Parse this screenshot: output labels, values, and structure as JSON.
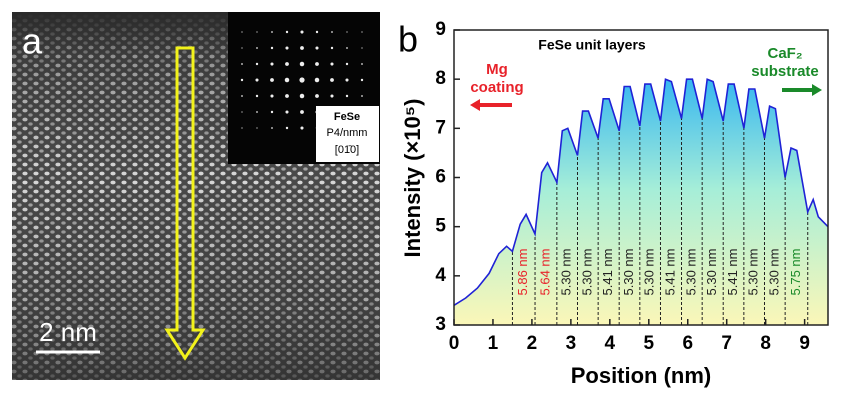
{
  "image_panel": {
    "label": "a",
    "scale_bar": "2 nm",
    "inset": [
      "FeSe",
      "P4/nmm",
      "[01̄0]"
    ]
  },
  "chart_data": {
    "type": "line",
    "panel_label": "b",
    "title": "FeSe unit layers",
    "xlabel": "Position (nm)",
    "ylabel": "Intensity (×10⁵)",
    "x": [
      0,
      0.3,
      0.6,
      0.9,
      1.15,
      1.35,
      1.5,
      1.7,
      1.85,
      2.08,
      2.25,
      2.4,
      2.64,
      2.78,
      2.92,
      3.17,
      3.3,
      3.45,
      3.7,
      3.83,
      3.98,
      4.24,
      4.37,
      4.52,
      4.77,
      4.9,
      5.05,
      5.3,
      5.43,
      5.58,
      5.84,
      5.97,
      6.12,
      6.37,
      6.5,
      6.65,
      6.91,
      7.04,
      7.19,
      7.44,
      7.57,
      7.72,
      7.97,
      8.1,
      8.25,
      8.5,
      8.65,
      8.8,
      9.08,
      9.22,
      9.35,
      9.6
    ],
    "series": [
      {
        "color": "#1f22d6",
        "values": [
          3.4,
          3.55,
          3.75,
          4.05,
          4.45,
          4.6,
          4.5,
          5.05,
          5.25,
          4.85,
          6.1,
          6.3,
          5.9,
          6.95,
          7.0,
          6.45,
          7.35,
          7.35,
          6.8,
          7.6,
          7.6,
          6.95,
          7.85,
          7.85,
          7.05,
          7.9,
          7.9,
          7.15,
          8.0,
          7.95,
          7.2,
          8.0,
          8.0,
          7.2,
          8.0,
          7.95,
          7.15,
          7.9,
          7.9,
          7.0,
          7.8,
          7.8,
          6.8,
          7.45,
          7.4,
          6.0,
          6.6,
          6.55,
          5.3,
          5.55,
          5.2,
          5.0
        ]
      }
    ],
    "xlim": [
      0,
      9.6
    ],
    "ylim": [
      3,
      9
    ],
    "xticks": [
      0,
      1,
      2,
      3,
      4,
      5,
      6,
      7,
      8,
      9
    ],
    "yticks": [
      3,
      4,
      5,
      6,
      7,
      8,
      9
    ],
    "left_note": {
      "text": [
        "Mg",
        "coating"
      ],
      "color": "#e8222a"
    },
    "right_note": {
      "text": [
        "CaF₂",
        "substrate"
      ],
      "color": "#1a8a2a"
    },
    "layers": {
      "positions": [
        1.5,
        2.08,
        2.64,
        3.17,
        3.7,
        4.24,
        4.77,
        5.3,
        5.84,
        6.37,
        6.91,
        7.44,
        7.97,
        8.5,
        9.08
      ],
      "labels": [
        "5.86 nm",
        "5.64 nm",
        "5.30 nm",
        "5.30 nm",
        "5.41 nm",
        "5.30 nm",
        "5.30 nm",
        "5.41 nm",
        "5.30 nm",
        "5.30 nm",
        "5.41 nm",
        "5.30 nm",
        "5.30 nm",
        "5.75 nm"
      ],
      "colors": [
        "#e8222a",
        "#e8222a",
        "#222222",
        "#222222",
        "#222222",
        "#222222",
        "#222222",
        "#222222",
        "#222222",
        "#222222",
        "#222222",
        "#222222",
        "#222222",
        "#1a8a2a"
      ]
    }
  }
}
